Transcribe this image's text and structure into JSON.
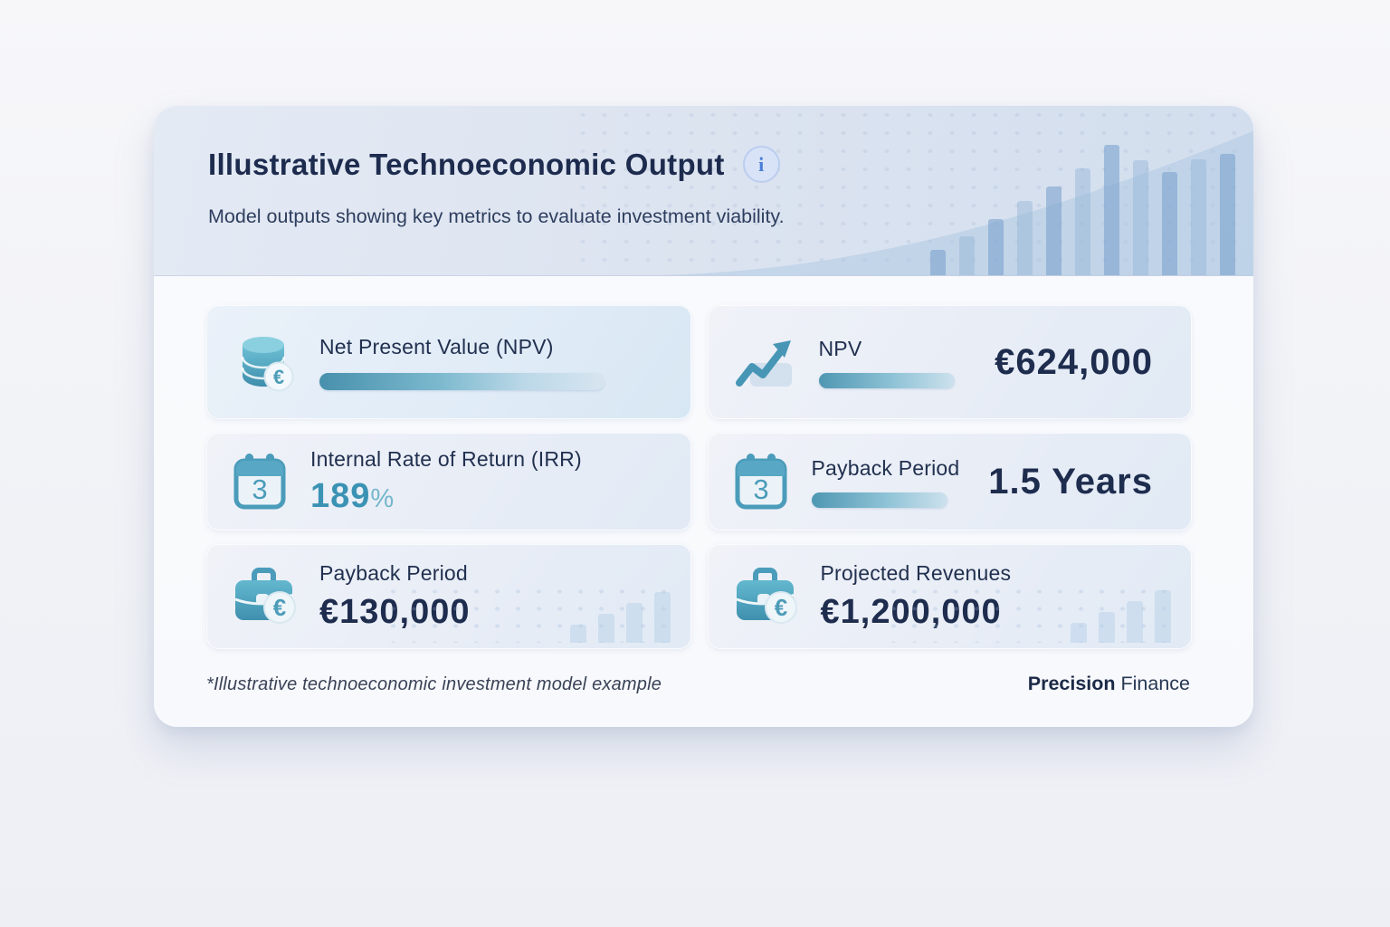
{
  "header": {
    "title": "Illustrative Technoeconomic Output",
    "info_label": "i",
    "subtitle": "Model outputs showing key metrics to evaluate investment viability.",
    "decorative_bar_heights": [
      28,
      43,
      62,
      82,
      98,
      118,
      144,
      127,
      114,
      128,
      134
    ]
  },
  "tiles": {
    "npv_left": {
      "title": "Net Present Value (NPV)"
    },
    "npv_right": {
      "label": "NPV",
      "value": "€624,000"
    },
    "irr": {
      "title": "Internal Rate of Return (IRR)",
      "value": "189",
      "unit": "%"
    },
    "payback_right": {
      "title": "Payback Period",
      "value": "1.5 Years"
    },
    "payback_left": {
      "title": "Payback Period",
      "value": "€130,000"
    },
    "revenues": {
      "title": "Projected Revenues",
      "value": "€1,200,000"
    }
  },
  "icons": {
    "euro": "€",
    "calendar_day": "3"
  },
  "footer": {
    "note": "*Illustrative technoeconomic investment model example",
    "brand_bold": "Precision",
    "brand_regular": " Finance"
  },
  "colors": {
    "accent_teal": "#3b93b4",
    "accent_teal_light": "#74b6cd",
    "navy_text": "#1e2c4e",
    "header_band": "#d8e1ef",
    "tile_bg": "#e8edf6",
    "info_blue": "#4a7ed7"
  }
}
